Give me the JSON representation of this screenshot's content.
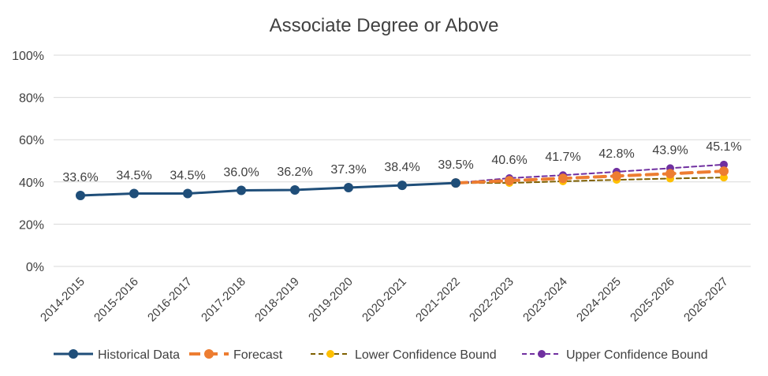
{
  "chart_data": {
    "type": "line",
    "title": "Associate Degree or Above",
    "xlabel": "",
    "ylabel": "",
    "ylim": [
      0,
      100
    ],
    "yticks": [
      "0%",
      "20%",
      "40%",
      "60%",
      "80%",
      "100%"
    ],
    "grid": true,
    "legend": "bottom",
    "categories": [
      "2014-2015",
      "2015-2016",
      "2016-2017",
      "2017-2018",
      "2018-2019",
      "2019-2020",
      "2020-2021",
      "2021-2022",
      "2022-2023",
      "2023-2024",
      "2024-2025",
      "2025-2026",
      "2026-2027"
    ],
    "data_labels": [
      "33.6%",
      "34.5%",
      "34.5%",
      "36.0%",
      "36.2%",
      "37.3%",
      "38.4%",
      "39.5%",
      "40.6%",
      "41.7%",
      "42.8%",
      "43.9%",
      "45.1%"
    ],
    "series": [
      {
        "name": "Historical Data",
        "color": "#1f4e79",
        "style": "solid",
        "values": [
          33.6,
          34.5,
          34.5,
          36.0,
          36.2,
          37.3,
          38.4,
          39.5,
          null,
          null,
          null,
          null,
          null
        ]
      },
      {
        "name": "Forecast",
        "color": "#ed7d31",
        "style": "dashed-thick",
        "values": [
          null,
          null,
          null,
          null,
          null,
          null,
          null,
          39.5,
          40.6,
          41.7,
          42.8,
          43.9,
          45.1
        ]
      },
      {
        "name": "Lower Confidence Bound",
        "color": "#ffc000",
        "line_color": "#7f6000",
        "style": "dashed",
        "values": [
          null,
          null,
          null,
          null,
          null,
          null,
          null,
          39.5,
          39.5,
          40.3,
          41.0,
          41.6,
          42.1
        ]
      },
      {
        "name": "Upper Confidence Bound",
        "color": "#7030a0",
        "style": "dashed",
        "values": [
          null,
          null,
          null,
          null,
          null,
          null,
          null,
          39.5,
          41.8,
          43.2,
          44.8,
          46.5,
          48.2
        ]
      }
    ]
  }
}
